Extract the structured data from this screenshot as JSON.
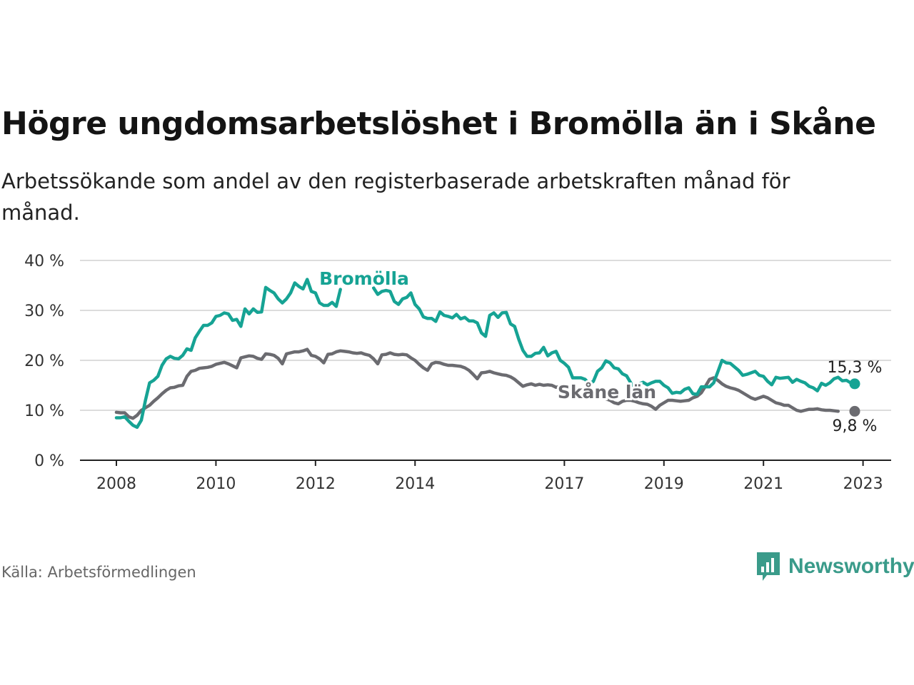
{
  "title": "Högre ungdomsarbetslöshet i Bromölla än i Skåne",
  "subtitle": "Arbetssökande som andel av den registerbaserade arbetskraften månad för månad.",
  "source": "Källa: Arbetsförmedlingen",
  "brand": "Newsworthy",
  "colors": {
    "bromolla": "#16a394",
    "skane": "#6b6b70",
    "grid": "#dcdcdc",
    "axis": "#222222",
    "brand": "#3a9b8a"
  },
  "chart_data": {
    "type": "line",
    "x_start": 2008.0,
    "x_step_months": 1,
    "ylim": [
      0,
      40
    ],
    "yticks": [
      0,
      10,
      20,
      30,
      40
    ],
    "ytick_labels": [
      "0 %",
      "10 %",
      "20 %",
      "30 %",
      "40 %"
    ],
    "xticks": [
      2008,
      2010,
      2012,
      2014,
      2017,
      2019,
      2021,
      2023
    ],
    "xtick_labels": [
      "2008",
      "2010",
      "2012",
      "2014",
      "2017",
      "2019",
      "2021",
      "2023"
    ],
    "series": [
      {
        "name": "Bromölla",
        "label": "Bromölla",
        "end_label": "15,3 %",
        "values": [
          8.5,
          8.5,
          8.7,
          7.8,
          7.0,
          6.6,
          8.0,
          12.0,
          15.5,
          16.0,
          16.8,
          19.0,
          20.3,
          20.8,
          20.4,
          20.3,
          21.0,
          22.3,
          22.0,
          24.5,
          25.8,
          27.0,
          27.0,
          27.5,
          28.8,
          29.0,
          29.5,
          29.3,
          28.0,
          28.2,
          26.8,
          30.3,
          29.3,
          30.3,
          29.6,
          29.7,
          34.6,
          34.0,
          33.5,
          32.3,
          31.5,
          32.3,
          33.5,
          35.5,
          34.8,
          34.3,
          36.2,
          33.8,
          33.5,
          31.5,
          31.0,
          31.0,
          31.6,
          30.8,
          34.2,
          null,
          null,
          null,
          null,
          null,
          null,
          null,
          34.5,
          33.2,
          33.8,
          34.0,
          33.8,
          31.8,
          31.2,
          32.3,
          32.6,
          33.5,
          31.2,
          30.3,
          28.7,
          28.4,
          28.4,
          27.8,
          29.7,
          29.0,
          28.8,
          28.5,
          29.2,
          28.3,
          28.6,
          27.9,
          27.9,
          27.5,
          25.5,
          24.8,
          29.0,
          29.5,
          28.6,
          29.5,
          29.6,
          27.3,
          26.8,
          24.2,
          22.0,
          20.8,
          20.8,
          21.4,
          21.5,
          22.6,
          20.9,
          21.5,
          21.8,
          20.0,
          19.4,
          18.6,
          16.5,
          16.5,
          16.5,
          16.2,
          15.3,
          15.8,
          17.8,
          18.5,
          19.9,
          19.5,
          18.5,
          18.3,
          17.3,
          16.9,
          15.5,
          14.5,
          15.3,
          15.6,
          15.1,
          15.5,
          15.8,
          15.8,
          15.0,
          14.5,
          13.4,
          13.6,
          13.5,
          14.2,
          14.5,
          13.3,
          13.2,
          14.7,
          14.7,
          14.7,
          15.5,
          17.7,
          20.0,
          19.5,
          19.4,
          18.7,
          18.0,
          17.0,
          17.2,
          17.5,
          17.8,
          17.0,
          16.8,
          15.8,
          15.1,
          16.6,
          16.4,
          16.5,
          16.6,
          15.6,
          16.2,
          15.8,
          15.5,
          14.8,
          14.5,
          13.9,
          15.4,
          15.0,
          15.5,
          16.3,
          16.6,
          15.9,
          16.0,
          15.5,
          15.3
        ],
        "color": "#16a394"
      },
      {
        "name": "Skåne län",
        "label": "Skåne län",
        "end_label": "9,8 %",
        "values": [
          9.6,
          9.5,
          9.5,
          8.7,
          8.4,
          9.0,
          10.0,
          10.5,
          11.0,
          11.8,
          12.5,
          13.3,
          14.0,
          14.5,
          14.6,
          14.9,
          15.0,
          16.8,
          17.8,
          18.0,
          18.4,
          18.5,
          18.6,
          18.8,
          19.2,
          19.4,
          19.6,
          19.3,
          18.9,
          18.5,
          20.5,
          20.7,
          20.9,
          20.8,
          20.4,
          20.2,
          21.3,
          21.2,
          21.0,
          20.4,
          19.3,
          21.3,
          21.5,
          21.7,
          21.7,
          21.9,
          22.2,
          21.0,
          20.8,
          20.3,
          19.5,
          21.2,
          21.3,
          21.7,
          21.9,
          21.8,
          21.7,
          21.5,
          21.4,
          21.5,
          21.2,
          21.0,
          20.3,
          19.3,
          21.1,
          21.2,
          21.5,
          21.2,
          21.1,
          21.2,
          21.1,
          20.5,
          20.0,
          19.2,
          18.5,
          18.0,
          19.3,
          19.6,
          19.5,
          19.2,
          19.0,
          19.0,
          18.9,
          18.8,
          18.5,
          18.0,
          17.2,
          16.3,
          17.5,
          17.6,
          17.8,
          17.5,
          17.3,
          17.1,
          17.0,
          16.7,
          16.2,
          15.5,
          14.8,
          15.1,
          15.3,
          15.0,
          15.2,
          15.0,
          15.1,
          15.0,
          14.6,
          14.8,
          14.5,
          14.0,
          13.5,
          12.9,
          13.0,
          13.3,
          13.2,
          12.8,
          12.5,
          12.5,
          12.3,
          12.0,
          11.5,
          11.3,
          11.8,
          12.0,
          12.0,
          11.8,
          11.5,
          11.3,
          11.2,
          10.8,
          10.2,
          11.0,
          11.5,
          12.0,
          12.0,
          11.9,
          11.8,
          11.9,
          12.0,
          12.5,
          12.8,
          13.5,
          14.8,
          16.2,
          16.5,
          16.0,
          15.3,
          14.8,
          14.5,
          14.3,
          14.0,
          13.5,
          13.0,
          12.5,
          12.2,
          12.5,
          12.8,
          12.5,
          12.0,
          11.5,
          11.3,
          11.0,
          11.0,
          10.5,
          10.0,
          9.8,
          10.0,
          10.2,
          10.2,
          10.3,
          10.1,
          10.0,
          10.0,
          9.9,
          9.8
        ],
        "color": "#6b6b70"
      }
    ]
  }
}
